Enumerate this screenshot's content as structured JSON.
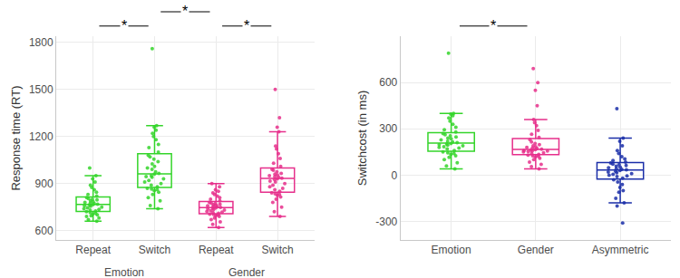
{
  "chart_data": [
    {
      "type": "box",
      "y_label": "Response time (RT)",
      "categories": [
        "Repeat",
        "Switch",
        "Repeat",
        "Switch"
      ],
      "groups": [
        "Emotion",
        "Emotion",
        "Gender",
        "Gender"
      ],
      "colors": [
        "#34d52a",
        "#34d52a",
        "#e62f8b",
        "#e62f8b"
      ],
      "values": [
        [
          660,
          670,
          680,
          690,
          695,
          700,
          705,
          710,
          715,
          720,
          725,
          730,
          735,
          740,
          745,
          750,
          755,
          758,
          762,
          765,
          768,
          772,
          776,
          780,
          785,
          790,
          795,
          800,
          805,
          810,
          820,
          830,
          845,
          860,
          875,
          890,
          910,
          930,
          950,
          1000
        ],
        [
          740,
          760,
          790,
          810,
          830,
          845,
          855,
          860,
          865,
          870,
          880,
          890,
          900,
          910,
          920,
          930,
          940,
          945,
          950,
          960,
          965,
          975,
          990,
          1000,
          1010,
          1025,
          1040,
          1055,
          1070,
          1080,
          1100,
          1130,
          1150,
          1180,
          1200,
          1220,
          1240,
          1260,
          1270,
          1760
        ],
        [
          620,
          640,
          655,
          670,
          680,
          690,
          695,
          700,
          703,
          705,
          710,
          715,
          718,
          722,
          726,
          730,
          735,
          738,
          742,
          745,
          748,
          752,
          755,
          758,
          762,
          765,
          768,
          772,
          776,
          780,
          790,
          800,
          810,
          820,
          830,
          840,
          850,
          860,
          880,
          900
        ],
        [
          690,
          720,
          750,
          780,
          800,
          815,
          825,
          830,
          835,
          840,
          850,
          860,
          870,
          880,
          890,
          900,
          910,
          915,
          925,
          930,
          935,
          940,
          945,
          950,
          955,
          960,
          965,
          975,
          985,
          990,
          1010,
          1030,
          1060,
          1090,
          1120,
          1140,
          1230,
          1260,
          1320,
          1500
        ]
      ],
      "ylim": [
        540,
        1840
      ],
      "yticks": [
        600,
        900,
        1200,
        1500,
        1800
      ],
      "grid": true,
      "comparisons": [
        {
          "from": 0,
          "to": 1,
          "label": "*"
        },
        {
          "from": 1,
          "to": 2,
          "label": "*"
        },
        {
          "from": 2,
          "to": 3,
          "label": "*"
        }
      ]
    },
    {
      "type": "box",
      "y_label": "Switchcost (in ms)",
      "categories": [
        "Emotion",
        "Gender",
        "Asymmetric"
      ],
      "colors": [
        "#34d52a",
        "#e62f8b",
        "#1a2ea8"
      ],
      "values": [
        [
          40,
          60,
          80,
          100,
          115,
          125,
          135,
          140,
          145,
          150,
          160,
          170,
          175,
          180,
          185,
          190,
          195,
          198,
          202,
          205,
          210,
          215,
          220,
          228,
          235,
          240,
          248,
          255,
          262,
          270,
          280,
          295,
          310,
          330,
          350,
          370,
          385,
          395,
          400,
          790
        ],
        [
          40,
          55,
          70,
          85,
          100,
          110,
          118,
          122,
          126,
          130,
          135,
          140,
          145,
          150,
          153,
          156,
          158,
          160,
          163,
          165,
          168,
          172,
          176,
          180,
          185,
          190,
          198,
          205,
          215,
          230,
          245,
          265,
          290,
          320,
          340,
          360,
          450,
          550,
          600,
          690
        ],
        [
          -310,
          -200,
          -180,
          -150,
          -110,
          -100,
          -80,
          -60,
          -45,
          -30,
          -20,
          -10,
          -5,
          0,
          5,
          10,
          15,
          20,
          25,
          30,
          35,
          38,
          42,
          48,
          52,
          58,
          62,
          68,
          72,
          78,
          85,
          95,
          105,
          120,
          140,
          160,
          190,
          220,
          240,
          430
        ]
      ],
      "ylim": [
        -420,
        900
      ],
      "yticks": [
        -300,
        0,
        300,
        600
      ],
      "grid": true,
      "comparisons": [
        {
          "from": 0,
          "to": 1,
          "label": "*"
        }
      ]
    }
  ]
}
